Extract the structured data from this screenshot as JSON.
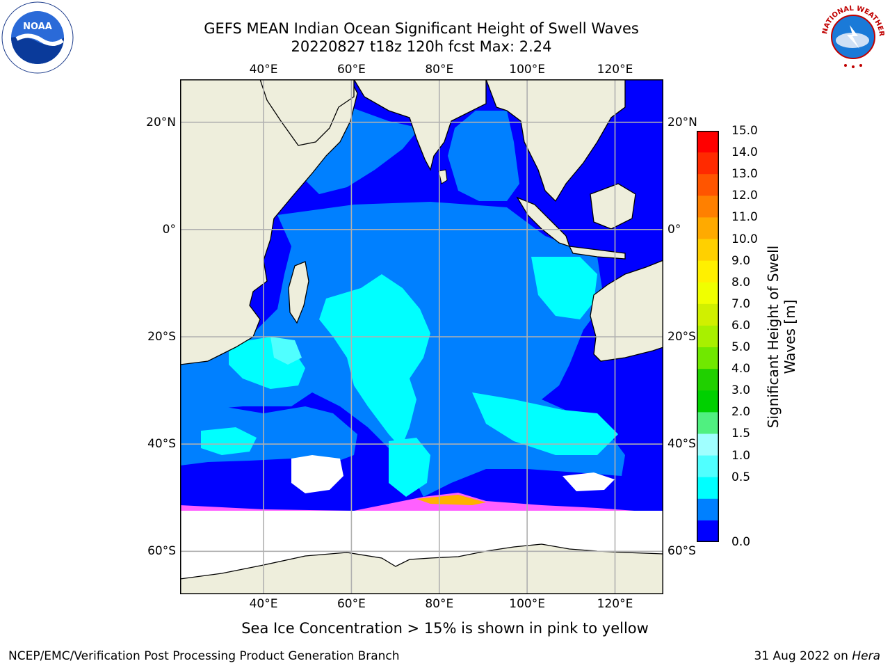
{
  "title": {
    "line1": "GEFS MEAN Indian Ocean Significant Height of Swell Waves",
    "line2": "20220827 t18z 120h fcst   Max: 2.24"
  },
  "logos": {
    "left": "NOAA",
    "right": "NATIONAL WEATHER SERVICE"
  },
  "map": {
    "region": "Indian Ocean",
    "lon_ticks": [
      "40°E",
      "60°E",
      "80°E",
      "100°E",
      "120°E"
    ],
    "lat_ticks": [
      "20°N",
      "0°",
      "20°S",
      "40°S",
      "60°S"
    ],
    "lon_values": [
      40,
      60,
      80,
      100,
      120
    ],
    "lat_values": [
      20,
      0,
      -20,
      -40,
      -60
    ],
    "lon_range": [
      21,
      131
    ],
    "lat_range": [
      -68,
      28
    ],
    "colors": {
      "land": "#eeeedc",
      "ocean_low": "#0000ff",
      "grid": "#b0b0b0"
    }
  },
  "colorbar": {
    "label_line1": "Significant Height of Swell",
    "label_line2": "Waves [m]",
    "ticks": [
      "15.0",
      "14.0",
      "13.0",
      "12.0",
      "11.0",
      "10.0",
      "9.0",
      "8.0",
      "7.0",
      "6.0",
      "5.0",
      "4.0",
      "3.0",
      "2.0",
      "1.5",
      "1.0",
      "0.5",
      "0.0"
    ],
    "colors_top_to_bottom": [
      "#ff0000",
      "#ff2a00",
      "#ff5500",
      "#ff8000",
      "#ffaa00",
      "#ffd000",
      "#fff000",
      "#f0ff00",
      "#d0f000",
      "#a8f000",
      "#70e800",
      "#20d000",
      "#00d000",
      "#50f080",
      "#a0ffff",
      "#50ffff",
      "#00ffff",
      "#0080ff",
      "#0000ff"
    ]
  },
  "footnote": "Sea Ice Concentration > 15% is shown in pink to yellow",
  "credit": "NCEP/EMC/Verification Post Processing Product Generation Branch",
  "date": "31 Aug 2022 on",
  "machine": "Hera"
}
